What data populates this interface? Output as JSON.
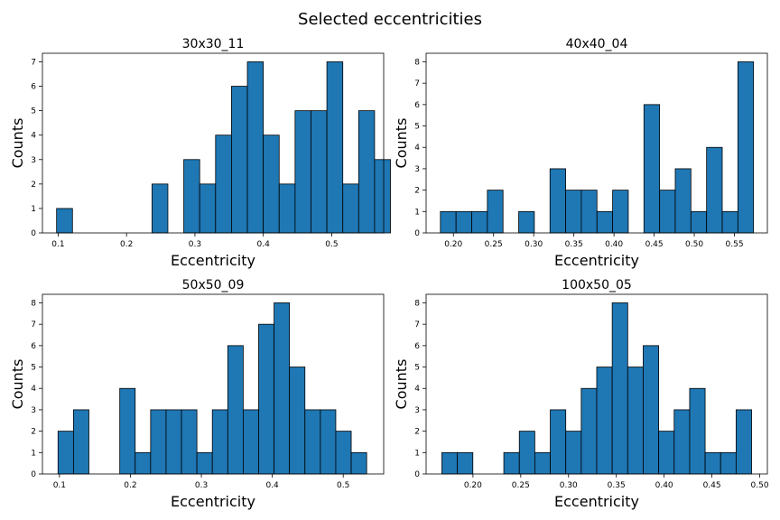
{
  "figure": {
    "suptitle": "Selected eccentricities"
  },
  "chart_data": [
    {
      "type": "bar",
      "title": "30x30_11",
      "xlabel": "Eccentricity",
      "ylabel": "Counts",
      "bin_width": 0.02325,
      "bin_start": 0.0977,
      "values": [
        1,
        0,
        0,
        0,
        0,
        0,
        2,
        0,
        3,
        2,
        4,
        6,
        7,
        4,
        2,
        5,
        5,
        7,
        2,
        5,
        3
      ],
      "xlim": [
        0.077,
        0.576
      ],
      "ylim": [
        0,
        7.35
      ],
      "xticks": [
        0.1,
        0.2,
        0.3,
        0.4,
        0.5
      ],
      "xtick_labels": [
        "0.1",
        "0.2",
        "0.3",
        "0.4",
        "0.5"
      ],
      "yticks": [
        0,
        1,
        2,
        3,
        4,
        5,
        6,
        7
      ],
      "ytick_labels": [
        "0",
        "1",
        "2",
        "3",
        "4",
        "5",
        "6",
        "7"
      ],
      "grid": false
    },
    {
      "type": "bar",
      "title": "40x40_04",
      "xlabel": "Eccentricity",
      "ylabel": "Counts",
      "bin_width": 0.0195,
      "bin_start": 0.1838,
      "values": [
        1,
        1,
        1,
        2,
        0,
        1,
        0,
        3,
        2,
        2,
        1,
        2,
        0,
        6,
        2,
        3,
        1,
        4,
        1,
        8
      ],
      "xlim": [
        0.166,
        0.591
      ],
      "ylim": [
        0,
        8.4
      ],
      "xticks": [
        0.2,
        0.25,
        0.3,
        0.35,
        0.4,
        0.45,
        0.5,
        0.55
      ],
      "xtick_labels": [
        "0.20",
        "0.25",
        "0.30",
        "0.35",
        "0.40",
        "0.45",
        "0.50",
        "0.55"
      ],
      "yticks": [
        0,
        1,
        2,
        3,
        4,
        5,
        6,
        7,
        8
      ],
      "ytick_labels": [
        "0",
        "1",
        "2",
        "3",
        "4",
        "5",
        "6",
        "7",
        "8"
      ],
      "grid": false
    },
    {
      "type": "bar",
      "title": "50x50_09",
      "xlabel": "Eccentricity",
      "ylabel": "Counts",
      "bin_width": 0.02175,
      "bin_start": 0.098,
      "values": [
        2,
        3,
        0,
        0,
        4,
        1,
        3,
        3,
        3,
        1,
        3,
        6,
        3,
        7,
        8,
        5,
        3,
        3,
        2,
        1
      ],
      "xlim": [
        0.076,
        0.557
      ],
      "ylim": [
        0,
        8.4
      ],
      "xticks": [
        0.1,
        0.2,
        0.3,
        0.4,
        0.5
      ],
      "xtick_labels": [
        "0.1",
        "0.2",
        "0.3",
        "0.4",
        "0.5"
      ],
      "yticks": [
        0,
        1,
        2,
        3,
        4,
        5,
        6,
        7,
        8
      ],
      "ytick_labels": [
        "0",
        "1",
        "2",
        "3",
        "4",
        "5",
        "6",
        "7",
        "8"
      ],
      "grid": false
    },
    {
      "type": "bar",
      "title": "100x50_05",
      "xlabel": "Eccentricity",
      "ylabel": "Counts",
      "bin_width": 0.0162,
      "bin_start": 0.1675,
      "values": [
        1,
        1,
        0,
        0,
        1,
        2,
        1,
        3,
        2,
        4,
        5,
        8,
        5,
        6,
        2,
        3,
        4,
        1,
        1,
        3
      ],
      "xlim": [
        0.151,
        0.508
      ],
      "ylim": [
        0,
        8.4
      ],
      "xticks": [
        0.2,
        0.25,
        0.3,
        0.35,
        0.4,
        0.45,
        0.5
      ],
      "xtick_labels": [
        "0.20",
        "0.25",
        "0.30",
        "0.35",
        "0.40",
        "0.45",
        "0.50"
      ],
      "yticks": [
        0,
        1,
        2,
        3,
        4,
        5,
        6,
        7,
        8
      ],
      "ytick_labels": [
        "0",
        "1",
        "2",
        "3",
        "4",
        "5",
        "6",
        "7",
        "8"
      ],
      "grid": false
    }
  ],
  "colors": {
    "bar_fill": "#1f77b4",
    "bar_edge": "#000000"
  }
}
